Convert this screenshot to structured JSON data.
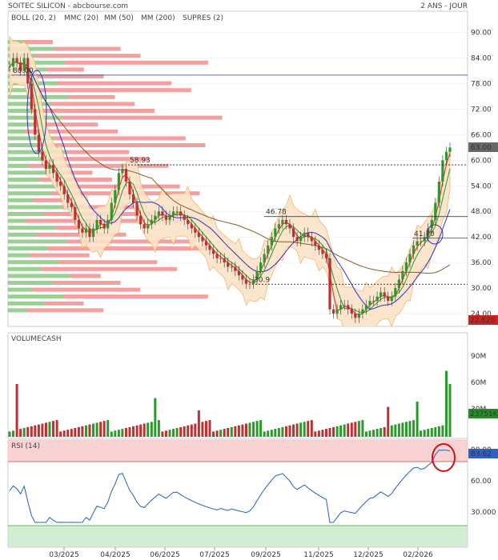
{
  "header": {
    "title": "SOITEC SILICON - abcbourse.com",
    "period": "2 ANS - JOUR",
    "legend": [
      {
        "label": "BOLL (20, 2)",
        "color": "#f0b060"
      },
      {
        "label": "MMC (20)",
        "color": "#2a9a2a"
      },
      {
        "label": "MM (50)",
        "color": "#3030c0"
      },
      {
        "label": "MM (200)",
        "color": "#8b5a2b"
      },
      {
        "label": "SUPRES (2)",
        "color": "#7ac070"
      }
    ]
  },
  "chart_data": [
    {
      "type": "candlestick",
      "title": "SOITEC SILICON",
      "x_ticks": [
        "03/2025",
        "04/2025",
        "06/2025",
        "07/2025",
        "09/2025",
        "11/2025",
        "12/2025",
        "02/2026"
      ],
      "y_ticks": [
        "90.00",
        "84.00",
        "78.00",
        "72.00",
        "66.00",
        "60.00",
        "54.00",
        "48.00",
        "42.00",
        "36.00",
        "30.00",
        "24.00"
      ],
      "ylim": [
        21,
        95
      ],
      "close_series": [
        82,
        84,
        83,
        81,
        84,
        78,
        72,
        66,
        62,
        60,
        58,
        59,
        57,
        55,
        54,
        52,
        50,
        49,
        46,
        44,
        43,
        44,
        42,
        44,
        46,
        45,
        44,
        46,
        50,
        53,
        57,
        58,
        55,
        52,
        50,
        47,
        45,
        44,
        45,
        46,
        47,
        48,
        47,
        46,
        47,
        48,
        48,
        47,
        46,
        45,
        44,
        43,
        42,
        41,
        40,
        39,
        38,
        37,
        37,
        36,
        35,
        35,
        34,
        33,
        32,
        31,
        31,
        32,
        34,
        36,
        38,
        40,
        42,
        44,
        45,
        46,
        45,
        44,
        42,
        41,
        42,
        43,
        42,
        41,
        40,
        39,
        38,
        37,
        25,
        24,
        25,
        26,
        26,
        25,
        24,
        23,
        24,
        25,
        26,
        27,
        27,
        28,
        29,
        28,
        27,
        28,
        30,
        32,
        34,
        36,
        38,
        40,
        41,
        41,
        42,
        44,
        46,
        50,
        55,
        60,
        62,
        63
      ],
      "price_labels": [
        {
          "value": 80.0,
          "label": "80.00"
        },
        {
          "value": 58.93,
          "label": "58.93"
        },
        {
          "value": 46.78,
          "label": "46.78"
        },
        {
          "value": 41.7,
          "label": "41.70"
        },
        {
          "value": 30.9,
          "label": "30.9"
        }
      ],
      "last_price": "63.00",
      "low_price": "22.620"
    },
    {
      "type": "bar",
      "title": "VOLUMECASH",
      "y_ticks": [
        "90M",
        "60M",
        "30M"
      ],
      "last_value": "23751K"
    },
    {
      "type": "line",
      "title": "RSI (14)",
      "y_ticks": [
        "90.00",
        "60.00",
        "30.000"
      ],
      "last_value": "83.62"
    }
  ]
}
